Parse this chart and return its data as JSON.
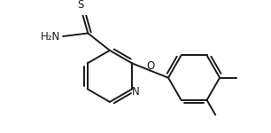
{
  "bg_color": "#ffffff",
  "line_color": "#1a1a1a",
  "line_width": 1.4,
  "figsize": [
    3.06,
    1.5
  ],
  "dpi": 100,
  "xlim": [
    0,
    306
  ],
  "ylim": [
    0,
    150
  ]
}
